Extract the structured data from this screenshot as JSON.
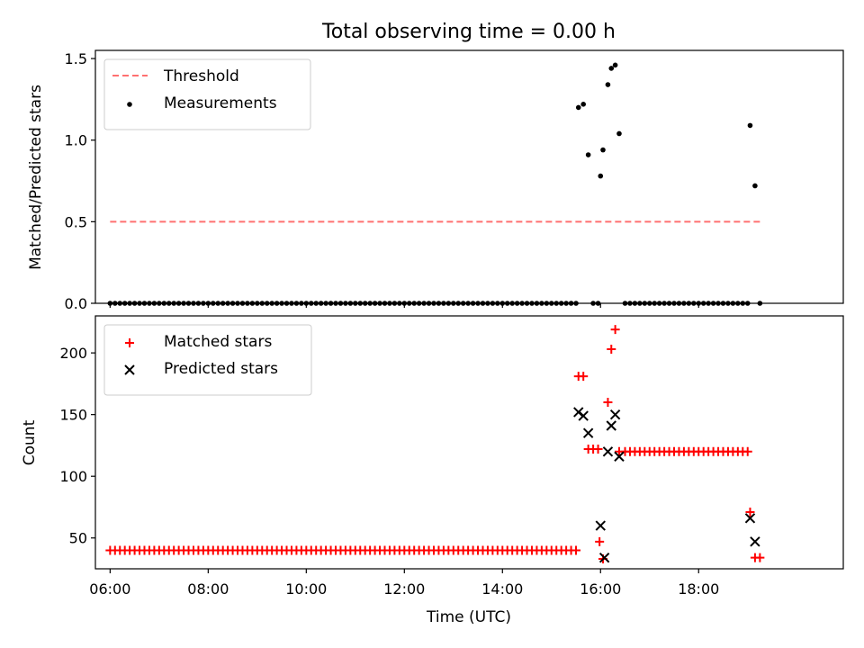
{
  "chart_data": [
    {
      "type": "scatter",
      "title": "Total observing time = 0.00 h",
      "ylabel": "Matched/Predicted stars",
      "xlabel": "",
      "xlim": [
        5.7,
        20.95
      ],
      "ylim": [
        0.0,
        1.55
      ],
      "yticks": [
        0.0,
        0.5,
        1.0,
        1.5
      ],
      "ytick_labels": [
        "0.0",
        "0.5",
        "1.0",
        "1.5"
      ],
      "legend_position": "upper-left",
      "threshold": {
        "name": "Threshold",
        "value": 0.5,
        "x_range": [
          6.0,
          19.25
        ],
        "color": "#ff7070",
        "style": "dashed"
      },
      "series": [
        {
          "name": "Measurements",
          "color": "#000000",
          "marker": "dot",
          "baseline": {
            "value": 0.0,
            "x_start": 6.0,
            "x_end": 15.5,
            "step_hours": 0.1
          },
          "points": [
            {
              "x": 15.55,
              "y": 1.2
            },
            {
              "x": 15.65,
              "y": 1.22
            },
            {
              "x": 15.75,
              "y": 0.91
            },
            {
              "x": 15.85,
              "y": 0.0
            },
            {
              "x": 15.95,
              "y": 0.0
            },
            {
              "x": 16.0,
              "y": 0.78
            },
            {
              "x": 16.05,
              "y": 0.94
            },
            {
              "x": 16.15,
              "y": 1.34
            },
            {
              "x": 16.22,
              "y": 1.44
            },
            {
              "x": 16.3,
              "y": 1.46
            },
            {
              "x": 16.38,
              "y": 1.04
            },
            {
              "x": 16.5,
              "y": 0.0
            },
            {
              "x": 16.6,
              "y": 0.0
            },
            {
              "x": 16.7,
              "y": 0.0
            },
            {
              "x": 16.8,
              "y": 0.0
            },
            {
              "x": 16.9,
              "y": 0.0
            },
            {
              "x": 17.0,
              "y": 0.0
            },
            {
              "x": 17.1,
              "y": 0.0
            },
            {
              "x": 17.2,
              "y": 0.0
            },
            {
              "x": 17.3,
              "y": 0.0
            },
            {
              "x": 17.4,
              "y": 0.0
            },
            {
              "x": 17.5,
              "y": 0.0
            },
            {
              "x": 17.6,
              "y": 0.0
            },
            {
              "x": 17.7,
              "y": 0.0
            },
            {
              "x": 17.8,
              "y": 0.0
            },
            {
              "x": 17.9,
              "y": 0.0
            },
            {
              "x": 18.0,
              "y": 0.0
            },
            {
              "x": 18.1,
              "y": 0.0
            },
            {
              "x": 18.2,
              "y": 0.0
            },
            {
              "x": 18.3,
              "y": 0.0
            },
            {
              "x": 18.4,
              "y": 0.0
            },
            {
              "x": 18.5,
              "y": 0.0
            },
            {
              "x": 18.6,
              "y": 0.0
            },
            {
              "x": 18.7,
              "y": 0.0
            },
            {
              "x": 18.8,
              "y": 0.0
            },
            {
              "x": 18.9,
              "y": 0.0
            },
            {
              "x": 19.0,
              "y": 0.0
            },
            {
              "x": 19.05,
              "y": 1.09
            },
            {
              "x": 19.15,
              "y": 0.72
            },
            {
              "x": 19.25,
              "y": 0.0
            }
          ]
        }
      ]
    },
    {
      "type": "scatter",
      "title": "",
      "ylabel": "Count",
      "xlabel": "Time (UTC)",
      "xlim": [
        5.7,
        20.95
      ],
      "ylim": [
        25,
        230
      ],
      "yticks": [
        50,
        100,
        150,
        200
      ],
      "ytick_labels": [
        "50",
        "100",
        "150",
        "200"
      ],
      "xticks": [
        6,
        8,
        10,
        12,
        14,
        16,
        18
      ],
      "xtick_labels": [
        "06:00",
        "08:00",
        "10:00",
        "12:00",
        "14:00",
        "16:00",
        "18:00"
      ],
      "legend_position": "upper-left",
      "series": [
        {
          "name": "Matched stars",
          "color": "#ff0000",
          "marker": "plus",
          "baseline": {
            "value": 40,
            "x_start": 6.0,
            "x_end": 15.5,
            "step_hours": 0.1
          },
          "points": [
            {
              "x": 15.55,
              "y": 181
            },
            {
              "x": 15.65,
              "y": 181
            },
            {
              "x": 15.75,
              "y": 122
            },
            {
              "x": 15.85,
              "y": 122
            },
            {
              "x": 15.95,
              "y": 122
            },
            {
              "x": 15.98,
              "y": 47
            },
            {
              "x": 16.05,
              "y": 33
            },
            {
              "x": 16.15,
              "y": 160
            },
            {
              "x": 16.22,
              "y": 203
            },
            {
              "x": 16.3,
              "y": 219
            },
            {
              "x": 16.38,
              "y": 120
            },
            {
              "x": 16.5,
              "y": 120
            },
            {
              "x": 16.6,
              "y": 120
            },
            {
              "x": 16.7,
              "y": 120
            },
            {
              "x": 16.8,
              "y": 120
            },
            {
              "x": 16.9,
              "y": 120
            },
            {
              "x": 17.0,
              "y": 120
            },
            {
              "x": 17.1,
              "y": 120
            },
            {
              "x": 17.2,
              "y": 120
            },
            {
              "x": 17.3,
              "y": 120
            },
            {
              "x": 17.4,
              "y": 120
            },
            {
              "x": 17.5,
              "y": 120
            },
            {
              "x": 17.6,
              "y": 120
            },
            {
              "x": 17.7,
              "y": 120
            },
            {
              "x": 17.8,
              "y": 120
            },
            {
              "x": 17.9,
              "y": 120
            },
            {
              "x": 18.0,
              "y": 120
            },
            {
              "x": 18.1,
              "y": 120
            },
            {
              "x": 18.2,
              "y": 120
            },
            {
              "x": 18.3,
              "y": 120
            },
            {
              "x": 18.4,
              "y": 120
            },
            {
              "x": 18.5,
              "y": 120
            },
            {
              "x": 18.6,
              "y": 120
            },
            {
              "x": 18.7,
              "y": 120
            },
            {
              "x": 18.8,
              "y": 120
            },
            {
              "x": 18.9,
              "y": 120
            },
            {
              "x": 19.0,
              "y": 120
            },
            {
              "x": 19.05,
              "y": 71
            },
            {
              "x": 19.15,
              "y": 34
            },
            {
              "x": 19.25,
              "y": 34
            }
          ]
        },
        {
          "name": "Predicted stars",
          "color": "#000000",
          "marker": "x",
          "points": [
            {
              "x": 15.55,
              "y": 152
            },
            {
              "x": 15.65,
              "y": 149
            },
            {
              "x": 15.75,
              "y": 135
            },
            {
              "x": 16.0,
              "y": 60
            },
            {
              "x": 16.08,
              "y": 34
            },
            {
              "x": 16.15,
              "y": 120
            },
            {
              "x": 16.22,
              "y": 141
            },
            {
              "x": 16.3,
              "y": 150
            },
            {
              "x": 16.38,
              "y": 116
            },
            {
              "x": 19.05,
              "y": 66
            },
            {
              "x": 19.15,
              "y": 47
            }
          ]
        }
      ]
    }
  ]
}
